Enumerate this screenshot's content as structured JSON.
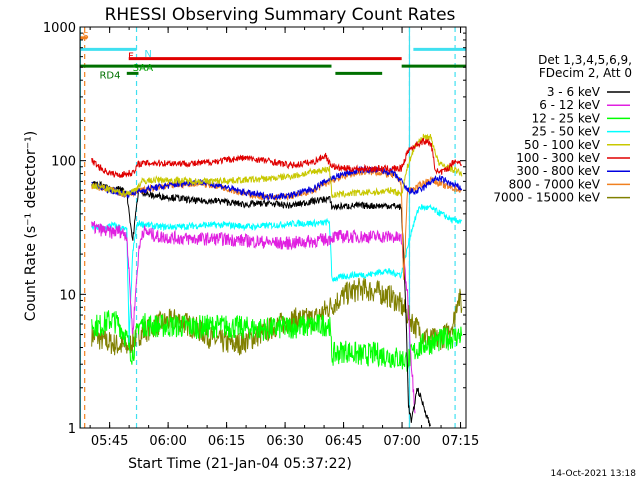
{
  "chart_data": {
    "type": "line",
    "title": "RHESSI Observing Summary Count Rates",
    "xlabel": "Start Time (21-Jan-04 05:37:22)",
    "ylabel": "Count Rate (s⁻¹ detector⁻¹)",
    "yscale": "log",
    "ylim": [
      1,
      1000
    ],
    "xlim_minutes": [
      0,
      99
    ],
    "x_ticks": [
      {
        "min": 7.6,
        "label": "05:45"
      },
      {
        "min": 22.6,
        "label": "06:00"
      },
      {
        "min": 37.6,
        "label": "06:15"
      },
      {
        "min": 52.6,
        "label": "06:30"
      },
      {
        "min": 67.6,
        "label": "06:45"
      },
      {
        "min": 82.6,
        "label": "07:00"
      },
      {
        "min": 97.6,
        "label": "07:15"
      }
    ],
    "y_ticks": [
      {
        "value": 1,
        "label": "1"
      },
      {
        "value": 10,
        "label": "10"
      },
      {
        "value": 100,
        "label": "100"
      },
      {
        "value": 1000,
        "label": "1000"
      }
    ],
    "legend": {
      "header": [
        "Det 1,3,4,5,6,9,",
        "FDecim 2, Att 0"
      ],
      "placement": "right"
    },
    "flag_labels": [
      {
        "text": "S",
        "color": "#f08020"
      },
      {
        "text": "N",
        "color": "#40e0f0"
      },
      {
        "text": "F",
        "color": "#e00000"
      },
      {
        "text": "SAA",
        "color": "#00a000"
      },
      {
        "text": "RD4",
        "color": "#007000"
      }
    ],
    "flags": [
      {
        "name": "S",
        "color": "#f08020",
        "y": 830,
        "segments": [
          [
            0,
            1.8
          ]
        ]
      },
      {
        "name": "N",
        "color": "#40e0f0",
        "y": 680,
        "segments": [
          [
            0,
            14.5
          ],
          [
            85.5,
            99
          ]
        ]
      },
      {
        "name": "F",
        "color": "#e00000",
        "y": 580,
        "segments": [
          [
            12.5,
            82.5
          ]
        ]
      },
      {
        "name": "SAA",
        "color": "#007000",
        "y": 510,
        "segments": [
          [
            0,
            64.5
          ],
          [
            82.5,
            99
          ]
        ]
      },
      {
        "name": "RD4",
        "color": "#007000",
        "y": 450,
        "segments": [
          [
            12,
            15
          ],
          [
            65.5,
            77.5
          ]
        ]
      }
    ],
    "vlines": [
      {
        "x": 1.2,
        "color": "#f08020"
      },
      {
        "x": 14.5,
        "color": "#40e0f0"
      },
      {
        "x": 84.5,
        "color": "#40e0f0"
      },
      {
        "x": 96.2,
        "color": "#40e0f0"
      }
    ],
    "series": [
      {
        "name": "3 - 6 keV",
        "color": "#000000",
        "x": [
          3,
          6,
          8,
          10,
          12,
          13.5,
          15,
          18,
          24,
          30,
          36,
          42,
          48,
          54,
          60,
          64,
          64.6,
          70,
          76,
          80,
          82.4,
          83,
          83.8,
          84.2,
          85,
          86.5,
          88,
          90
        ],
        "y": [
          68,
          65,
          60,
          62,
          58,
          25,
          60,
          55,
          53,
          50,
          50,
          47,
          48,
          46,
          50,
          52,
          45,
          46,
          46,
          46,
          45,
          20,
          5,
          1.5,
          1.1,
          2,
          1.5,
          1
        ]
      },
      {
        "name": "6 - 12 keV",
        "color": "#e020e0",
        "x": [
          3,
          6,
          8,
          10,
          12,
          13.5,
          15,
          16,
          20,
          28,
          36,
          44,
          52,
          60,
          64,
          64.6,
          70,
          76,
          80,
          82.4,
          84,
          85,
          86
        ],
        "y": [
          32,
          30,
          29,
          30,
          28,
          5,
          20,
          30,
          27,
          26,
          26,
          25,
          24,
          25,
          26,
          27,
          27,
          27,
          27,
          26,
          10,
          3,
          1.3
        ]
      },
      {
        "name": "12 - 25 keV",
        "color": "#00ff00",
        "x": [
          3,
          5,
          8,
          10,
          11.5,
          13.5,
          15,
          20,
          25,
          30,
          36,
          42,
          48,
          54,
          60,
          64,
          64.6,
          68,
          72,
          76,
          80,
          82,
          84,
          86,
          88,
          92,
          96,
          98
        ],
        "y": [
          6,
          5.8,
          6.5,
          6,
          5,
          3.5,
          6,
          5.8,
          5.8,
          5.7,
          5.8,
          5.6,
          5.5,
          5.7,
          5.8,
          6,
          3.5,
          3.8,
          3.5,
          3.6,
          3.4,
          3.3,
          3.2,
          3.8,
          4.2,
          4.5,
          4.8,
          5
        ]
      },
      {
        "name": "25 - 50 keV",
        "color": "#00ffff",
        "x": [
          3,
          6,
          8,
          10,
          12,
          12.6,
          13.5,
          14.5,
          15,
          20,
          26,
          32,
          38,
          44,
          50,
          56,
          62,
          64,
          64.6,
          70,
          74,
          78,
          82.4,
          85,
          87,
          90,
          94,
          96,
          98
        ],
        "y": [
          32,
          31,
          33,
          32,
          30,
          4.5,
          20,
          32,
          34,
          32,
          32,
          33,
          33,
          32,
          33,
          34,
          34,
          35,
          13,
          14,
          14,
          15,
          14,
          30,
          45,
          44,
          38,
          35,
          36
        ]
      },
      {
        "name": "50 - 100 keV",
        "color": "#c8c800",
        "x": [
          3,
          6,
          8,
          10,
          12,
          14,
          16,
          20,
          26,
          32,
          38,
          44,
          50,
          56,
          62,
          64,
          64.6,
          70,
          76,
          80,
          82.4,
          84.2,
          86,
          88,
          90,
          92,
          94,
          96,
          98
        ],
        "y": [
          65,
          63,
          60,
          58,
          57,
          60,
          70,
          72,
          71,
          70,
          71,
          72,
          74,
          78,
          85,
          87,
          55,
          57,
          58,
          60,
          56,
          95,
          130,
          150,
          150,
          95,
          90,
          85,
          80
        ]
      },
      {
        "name": "100 - 300 keV",
        "color": "#e00000",
        "x": [
          3,
          6,
          8,
          10,
          12,
          14,
          15,
          18,
          24,
          30,
          36,
          42,
          48,
          54,
          60,
          63,
          64,
          66,
          70,
          76,
          82.4,
          84.2,
          86,
          88,
          90,
          91,
          92,
          94,
          96,
          98
        ],
        "y": [
          100,
          85,
          80,
          78,
          80,
          82,
          95,
          96,
          96,
          95,
          100,
          105,
          100,
          92,
          98,
          110,
          95,
          88,
          87,
          87,
          87,
          120,
          130,
          140,
          135,
          90,
          80,
          85,
          100,
          95
        ]
      },
      {
        "name": "300 - 800 keV",
        "color": "#0000e0",
        "x": [
          3,
          6,
          10,
          12,
          14,
          18,
          24,
          30,
          36,
          42,
          48,
          54,
          60,
          64,
          68,
          72,
          76,
          80,
          82.4,
          84,
          86,
          88,
          90,
          92,
          94,
          96,
          98
        ],
        "y": [
          66,
          62,
          58,
          56,
          58,
          62,
          66,
          70,
          65,
          58,
          54,
          55,
          62,
          73,
          80,
          85,
          85,
          82,
          70,
          60,
          58,
          62,
          70,
          74,
          70,
          65,
          62
        ]
      },
      {
        "name": "800 - 7000 keV",
        "color": "#f08020",
        "x": [
          3,
          6,
          10,
          12,
          14,
          18,
          24,
          30,
          36,
          42,
          48,
          54,
          60,
          64,
          68,
          72,
          76,
          80,
          82.4,
          83,
          84,
          86,
          88,
          90,
          92,
          94,
          96,
          98
        ],
        "y": [
          65,
          62,
          58,
          56,
          58,
          62,
          65,
          68,
          64,
          57,
          53,
          54,
          60,
          70,
          77,
          82,
          82,
          78,
          70,
          12,
          60,
          62,
          68,
          72,
          68,
          64,
          62,
          60
        ]
      },
      {
        "name": "7000 - 15000 keV",
        "color": "#808000",
        "x": [
          3,
          6,
          9,
          12,
          15,
          20,
          25,
          30,
          35,
          40,
          45,
          50,
          55,
          60,
          64,
          68,
          72,
          76,
          80,
          82,
          84,
          86,
          88,
          90,
          92,
          94,
          96,
          97,
          98
        ],
        "y": [
          5,
          4.5,
          4.2,
          4,
          5,
          6,
          6.5,
          5.5,
          4.5,
          4.2,
          4.8,
          5.8,
          6.5,
          6.5,
          8,
          10,
          11,
          10.5,
          9.5,
          8.5,
          7,
          5.8,
          5,
          4.6,
          4.6,
          5,
          6.5,
          10,
          8
        ]
      }
    ]
  },
  "timestamp": "14-Oct-2021 13:18"
}
